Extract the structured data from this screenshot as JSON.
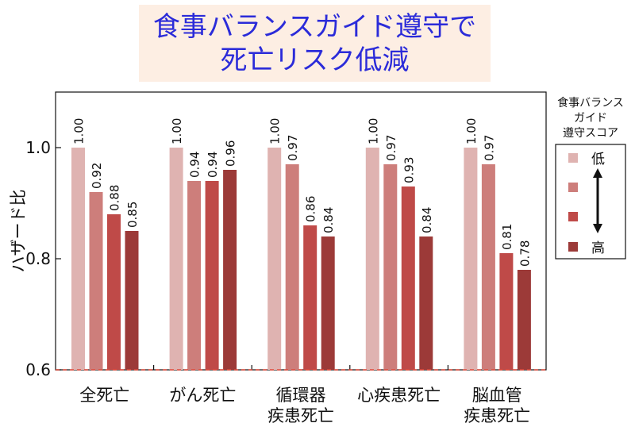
{
  "title": {
    "line1": "食事バランスガイド遵守で",
    "line2": "死亡リスク低減"
  },
  "chart_data": {
    "type": "bar",
    "ylabel": "ハザード比",
    "ylim": [
      0.6,
      1.1
    ],
    "yticks": [
      "0.6",
      "0.8",
      "1.0"
    ],
    "reference_line": 0.6,
    "categories": [
      [
        "全死亡"
      ],
      [
        "がん死亡"
      ],
      [
        "循環器",
        "疾患死亡"
      ],
      [
        "心疾患死亡"
      ],
      [
        "脳血管",
        "疾患死亡"
      ]
    ],
    "series": [
      {
        "values": [
          1.0,
          1.0,
          1.0,
          1.0,
          1.0
        ],
        "color": "#dfb3b1"
      },
      {
        "values": [
          0.92,
          0.94,
          0.97,
          0.97,
          0.97
        ],
        "color": "#cd7e7b"
      },
      {
        "values": [
          0.88,
          0.94,
          0.86,
          0.93,
          0.81
        ],
        "color": "#bf4a48"
      },
      {
        "values": [
          0.85,
          0.96,
          0.84,
          0.84,
          0.78
        ],
        "color": "#9c3a38"
      }
    ],
    "value_labels": [
      [
        "1.00",
        "0.92",
        "0.88",
        "0.85"
      ],
      [
        "1.00",
        "0.94",
        "0.94",
        "0.96"
      ],
      [
        "1.00",
        "0.97",
        "0.86",
        "0.84"
      ],
      [
        "1.00",
        "0.97",
        "0.93",
        "0.84"
      ],
      [
        "1.00",
        "0.97",
        "0.81",
        "0.78"
      ]
    ],
    "legend": {
      "title": [
        "食事バランス",
        "ガイド",
        "遵守スコア"
      ],
      "low_label": "低",
      "high_label": "高",
      "placement": "right"
    }
  }
}
